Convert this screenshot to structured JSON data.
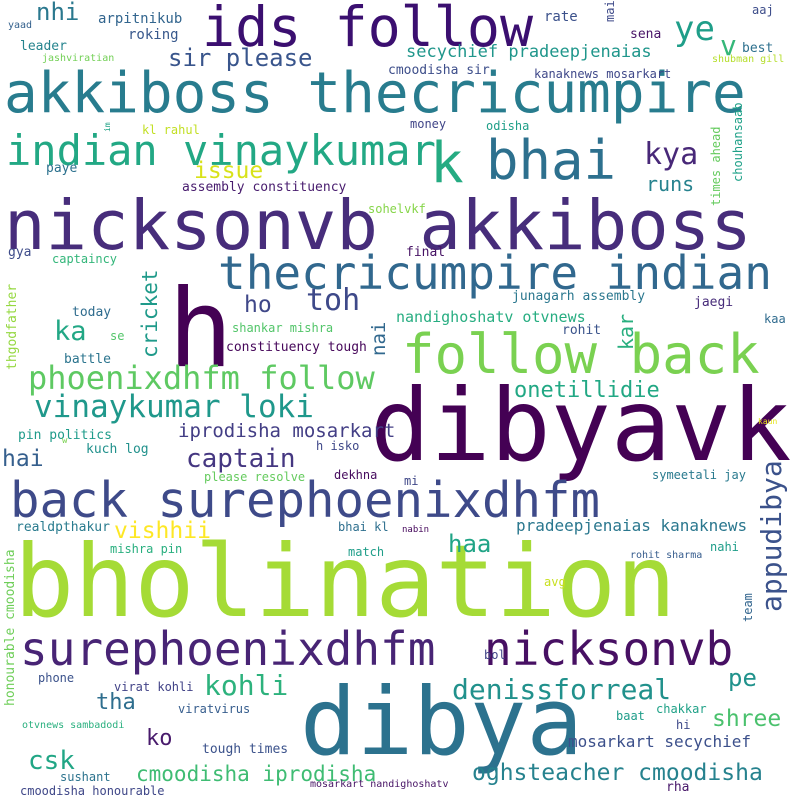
{
  "words": [
    {
      "text": "bholination",
      "color": "#a5db36"
    },
    {
      "text": "dibyavk",
      "color": "#440154"
    },
    {
      "text": "dibya",
      "color": "#2c728e"
    },
    {
      "text": "nicksonvb akkiboss",
      "color": "#472d7b"
    },
    {
      "text": "akkiboss thecricumpire",
      "color": "#287c8e"
    },
    {
      "text": "h",
      "color": "#440154"
    },
    {
      "text": "ids follow",
      "color": "#3b0f70"
    },
    {
      "text": "back surephoenixdhfm",
      "color": "#3e4a89"
    },
    {
      "text": "surephoenixdhfm",
      "color": "#482475"
    },
    {
      "text": "nicksonvb",
      "color": "#471063"
    },
    {
      "text": "follow back",
      "color": "#7ad151"
    },
    {
      "text": "thecricumpire indian",
      "color": "#31688e"
    },
    {
      "text": "bhai",
      "color": "#2d708e"
    },
    {
      "text": "indian vinaykumar",
      "color": "#22a884"
    },
    {
      "text": "k",
      "color": "#25ab82"
    },
    {
      "text": "phoenixdhfm follow",
      "color": "#5ec962"
    },
    {
      "text": "vinaykumar loki",
      "color": "#1f988b"
    },
    {
      "text": "appudibya",
      "color": "#3b528b"
    },
    {
      "text": "captain",
      "color": "#453781"
    },
    {
      "text": "kya",
      "color": "#482878"
    },
    {
      "text": "ye",
      "color": "#1f9e89"
    },
    {
      "text": "v",
      "color": "#35b779"
    },
    {
      "text": "toh",
      "color": "#3e4989"
    },
    {
      "text": "kohli",
      "color": "#2db27d"
    },
    {
      "text": "denissforreal",
      "color": "#21918c"
    },
    {
      "text": "csk",
      "color": "#21a685"
    },
    {
      "text": "cmoodisha iprodisha",
      "color": "#3fbc73"
    },
    {
      "text": "oghsteacher cmoodisha",
      "color": "#26828e"
    },
    {
      "text": "cricket",
      "color": "#1f9a8a"
    },
    {
      "text": "ka",
      "color": "#22a785"
    },
    {
      "text": "hai",
      "color": "#355f8d"
    },
    {
      "text": "sir please",
      "color": "#39558c"
    },
    {
      "text": "nhi",
      "color": "#2a788e"
    },
    {
      "text": "haa",
      "color": "#20a486"
    },
    {
      "text": "vishhii",
      "color": "#fde725"
    },
    {
      "text": "ho",
      "color": "#3f4788"
    },
    {
      "text": "pe",
      "color": "#20928c"
    },
    {
      "text": "shree",
      "color": "#4ac16d"
    },
    {
      "text": "tha",
      "color": "#2e6e8e"
    },
    {
      "text": "ko",
      "color": "#481a6c"
    },
    {
      "text": "mosarkart secychief",
      "color": "#3c508b"
    },
    {
      "text": "iprodisha mosarkart",
      "color": "#433e85"
    },
    {
      "text": "onetillidie",
      "color": "#22a884"
    },
    {
      "text": "nai",
      "color": "#31688e"
    },
    {
      "text": "runs",
      "color": "#26828e"
    },
    {
      "text": "kar",
      "color": "#29af7f"
    },
    {
      "text": "issue",
      "color": "#d8e219"
    },
    {
      "text": "secychief pradeepjenaias",
      "color": "#1f968b"
    },
    {
      "text": "pradeepjenaias kanaknews",
      "color": "#2a778e"
    },
    {
      "text": "nandighoshatv otvnews",
      "color": "#27ad81"
    },
    {
      "text": "arpitnikub",
      "color": "#32658e"
    },
    {
      "text": "roking",
      "color": "#38588c"
    },
    {
      "text": "rate",
      "color": "#3b518b"
    },
    {
      "text": "mai",
      "color": "#3e4a89"
    },
    {
      "text": "sena",
      "color": "#481467"
    },
    {
      "text": "aaj",
      "color": "#3d4d8a"
    },
    {
      "text": "best",
      "color": "#2d708e"
    },
    {
      "text": "yaad",
      "color": "#34618d"
    },
    {
      "text": "jashviratian",
      "color": "#73d056"
    },
    {
      "text": "leader",
      "color": "#25848e"
    },
    {
      "text": "shubman gill",
      "color": "#b5de2b"
    },
    {
      "text": "cmoodisha sir",
      "color": "#3d4e8a"
    },
    {
      "text": "kanaknews mosarkart",
      "color": "#3f4889"
    },
    {
      "text": "im",
      "color": "#20a386"
    },
    {
      "text": "kl rahul",
      "color": "#c2df23"
    },
    {
      "text": "money",
      "color": "#404588"
    },
    {
      "text": "odisha",
      "color": "#1f9f88"
    },
    {
      "text": "times ahead",
      "color": "#65cb5e"
    },
    {
      "text": "paye",
      "color": "#2c718e"
    },
    {
      "text": "chouhansaab",
      "color": "#1fa188"
    },
    {
      "text": "assembly constituency",
      "color": "#481c6e"
    },
    {
      "text": "sohelvkf",
      "color": "#86d549"
    },
    {
      "text": "gya",
      "color": "#3e4c8a"
    },
    {
      "text": "final",
      "color": "#471365"
    },
    {
      "text": "captaincy",
      "color": "#33b67a"
    },
    {
      "text": "junagarh assembly",
      "color": "#2a778e"
    },
    {
      "text": "jaegi",
      "color": "#472c7a"
    },
    {
      "text": "thgodfather",
      "color": "#95d840"
    },
    {
      "text": "today",
      "color": "#2f6c8e"
    },
    {
      "text": "shankar mishra",
      "color": "#52c569"
    },
    {
      "text": "rohit",
      "color": "#3a538b"
    },
    {
      "text": "kaa",
      "color": "#2f6b8e"
    },
    {
      "text": "se",
      "color": "#52c569"
    },
    {
      "text": "constituency tough",
      "color": "#46075a"
    },
    {
      "text": "battle",
      "color": "#2b748e"
    },
    {
      "text": "pin politics",
      "color": "#1e9b8a"
    },
    {
      "text": "kuch log",
      "color": "#21918c"
    },
    {
      "text": "h isko",
      "color": "#3f4889"
    },
    {
      "text": "kaun",
      "color": "#e5e419"
    },
    {
      "text": "w",
      "color": "#7ad151"
    },
    {
      "text": "please resolve",
      "color": "#65cb5e"
    },
    {
      "text": "dekhna",
      "color": "#460b5e"
    },
    {
      "text": "symeetali jay",
      "color": "#297a8e"
    },
    {
      "text": "mi",
      "color": "#3f4788"
    },
    {
      "text": "realdpthakur",
      "color": "#297b8e"
    },
    {
      "text": "bhai kl",
      "color": "#2e6f8e"
    },
    {
      "text": "nabin",
      "color": "#46085c"
    },
    {
      "text": "honourable cmoodisha",
      "color": "#6ece58"
    },
    {
      "text": "mishra pin",
      "color": "#29af7f"
    },
    {
      "text": "match",
      "color": "#1f9e89"
    },
    {
      "text": "nahi",
      "color": "#1e9d89"
    },
    {
      "text": "rohit sharma",
      "color": "#365c8d"
    },
    {
      "text": "avg",
      "color": "#c8e020"
    },
    {
      "text": "team",
      "color": "#32658e"
    },
    {
      "text": "bol",
      "color": "#414487"
    },
    {
      "text": "phone",
      "color": "#3b528b"
    },
    {
      "text": "virat kohli",
      "color": "#414287"
    },
    {
      "text": "viratvirus",
      "color": "#365d8d"
    },
    {
      "text": "chakkar",
      "color": "#1fa187"
    },
    {
      "text": "baat",
      "color": "#1e9c89"
    },
    {
      "text": "hi",
      "color": "#3e4a89"
    },
    {
      "text": "otvnews sambadodi",
      "color": "#2ab07f"
    },
    {
      "text": "tough times",
      "color": "#3b528b"
    },
    {
      "text": "sushant",
      "color": "#2c738e"
    },
    {
      "text": "cmoodisha honourable",
      "color": "#3f4788"
    },
    {
      "text": "mosarkart nandighoshatv",
      "color": "#471365"
    },
    {
      "text": "rha",
      "color": "#48186a"
    }
  ]
}
